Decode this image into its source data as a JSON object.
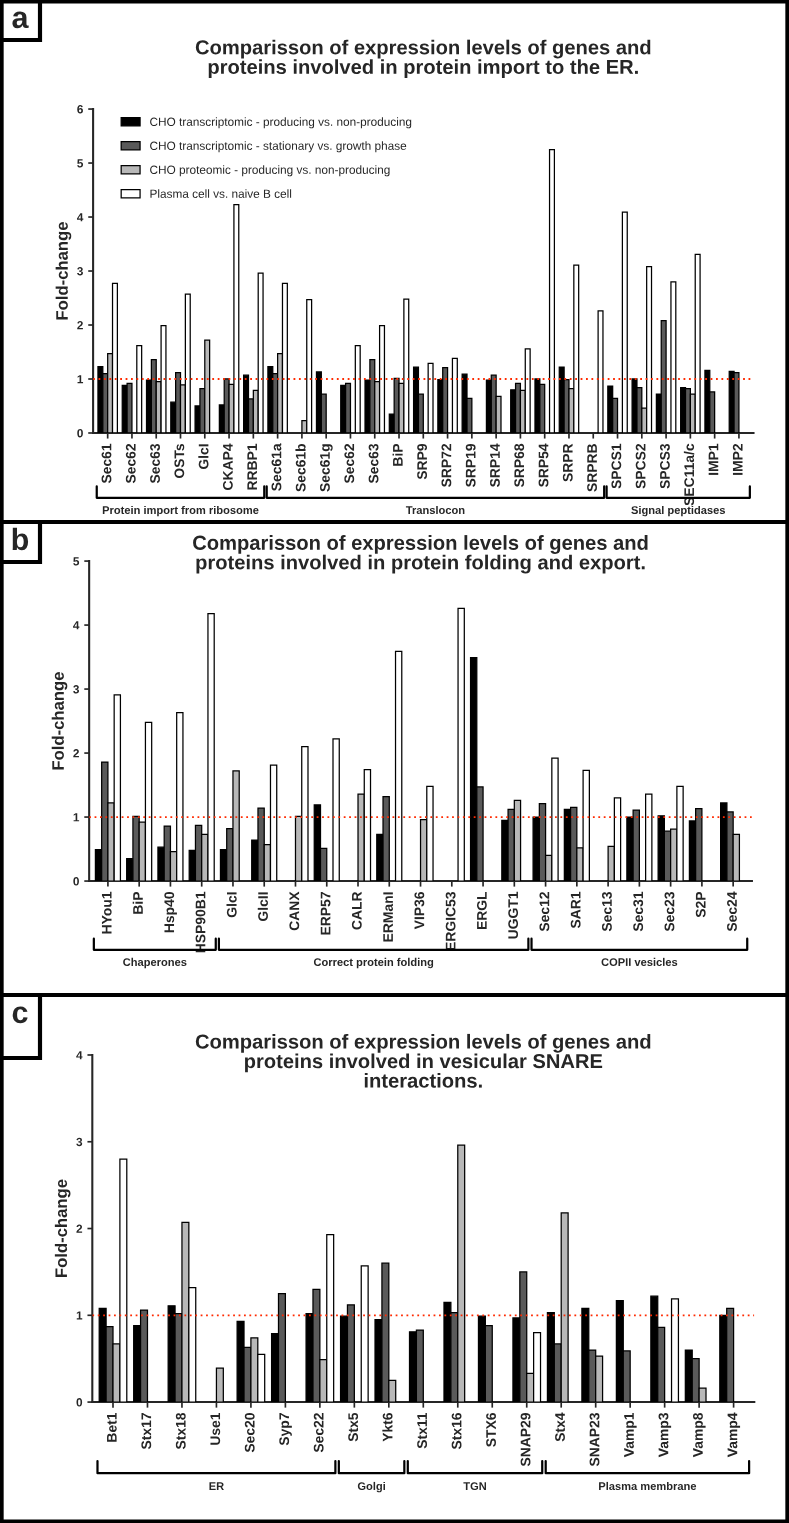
{
  "chart_data": [
    {
      "type": "bar",
      "title": "Comparisson of expression levels of genes and\nproteins involved in protein import to the ER.",
      "ylabel": "Fold-change",
      "annotations": [
        "a",
        "Protein import from ribosome",
        "Translocon",
        "Signal peptidases"
      ],
      "categories": [
        "Sec61",
        "Sec62",
        "Sec63",
        "OSTs",
        "GlcI",
        "CKAP4",
        "RRBP1",
        "Sec61a",
        "Sec61b",
        "Sec61g",
        "Sec62",
        "Sec63",
        "BiP",
        "SRP9",
        "SRP72",
        "SRP19",
        "SRP14",
        "SRP68",
        "SRP54",
        "SRPR",
        "SRPRB",
        "SPCS1",
        "SPCS2",
        "SPCS3",
        "SEC11a/c",
        "IMP1",
        "IMP2"
      ],
      "series": [
        {
          "name": "CHO transcriptomic - producing vs. non-producing",
          "color": "#000000",
          "values": [
            1.23,
            0.88,
            0.98,
            0.57,
            0.5,
            0.52,
            1.07,
            1.23,
            null,
            1.13,
            0.88,
            0.98,
            0.35,
            1.22,
            0.99,
            1.09,
            0.98,
            0.8,
            1.0,
            1.22,
            null,
            0.87,
            1.0,
            0.72,
            0.84,
            1.16,
            1.14
          ]
        },
        {
          "name": "CHO transcriptomic - stationary vs. growth phase",
          "color": "#5a5a5a",
          "values": [
            1.1,
            0.92,
            1.36,
            1.12,
            0.82,
            1.0,
            0.63,
            1.1,
            null,
            0.72,
            0.92,
            1.36,
            1.01,
            0.72,
            1.21,
            0.64,
            1.07,
            0.92,
            0.9,
            0.99,
            null,
            0.64,
            0.84,
            2.08,
            0.82,
            0.76,
            1.12
          ]
        },
        {
          "name": "CHO proteomic - producing vs. non-producing",
          "color": "#b8b8b8",
          "values": [
            1.47,
            null,
            0.95,
            0.89,
            1.72,
            0.9,
            0.79,
            1.47,
            0.23,
            null,
            null,
            0.95,
            0.92,
            null,
            null,
            null,
            0.68,
            0.79,
            null,
            0.82,
            null,
            null,
            0.46,
            null,
            0.72,
            null,
            null
          ]
        },
        {
          "name": "Plasma cell vs. naive B cell",
          "color": "#ffffff",
          "values": [
            2.77,
            1.62,
            1.99,
            2.57,
            null,
            4.23,
            2.96,
            2.77,
            2.47,
            null,
            1.62,
            1.99,
            2.48,
            1.29,
            1.38,
            null,
            null,
            1.56,
            5.25,
            3.11,
            2.26,
            4.09,
            3.08,
            2.8,
            3.31,
            null,
            null
          ]
        }
      ],
      "ylim": [
        0,
        6
      ],
      "yticks": [
        0,
        1,
        2,
        3,
        4,
        5,
        6
      ],
      "legend": "top left",
      "grid": false,
      "ref_lines": [
        {
          "axis": "y",
          "value": 1,
          "color": "#ff2a00",
          "line_style": "dotted"
        }
      ]
    },
    {
      "type": "bar",
      "title": "Comparisson of expression levels of genes and\nproteins involved in protein folding and export.",
      "ylabel": "Fold-change",
      "annotations": [
        "b",
        "Chaperones",
        "Correct protein folding",
        "COPII vesicles"
      ],
      "categories": [
        "HYou1",
        "BiP",
        "Hsp40",
        "HSP90B1",
        "GlcI",
        "GlcII",
        "CANX",
        "ERP57",
        "CALR",
        "ERManI",
        "VIP36",
        "ERGIC53",
        "ERGL",
        "UGGT1",
        "Sec12",
        "SAR1",
        "Sec13",
        "Sec31",
        "Sec23",
        "S2P",
        "Sec24"
      ],
      "series": [
        {
          "color": "#000000",
          "values": [
            0.49,
            0.35,
            0.53,
            0.48,
            0.49,
            0.64,
            null,
            1.19,
            null,
            0.73,
            null,
            null,
            3.49,
            0.95,
            1.0,
            1.12,
            null,
            1.0,
            1.02,
            0.94,
            1.22
          ]
        },
        {
          "color": "#5a5a5a",
          "values": [
            1.86,
            1.01,
            0.86,
            0.87,
            0.82,
            1.14,
            null,
            0.51,
            null,
            1.32,
            null,
            null,
            1.47,
            1.12,
            1.21,
            1.15,
            null,
            1.11,
            0.78,
            1.13,
            1.08
          ]
        },
        {
          "color": "#b8b8b8",
          "values": [
            1.22,
            0.92,
            0.46,
            0.73,
            1.72,
            0.57,
            1.01,
            null,
            1.36,
            null,
            0.96,
            null,
            null,
            1.26,
            0.4,
            0.52,
            0.54,
            null,
            0.81,
            null,
            0.73
          ]
        },
        {
          "color": "#ffffff",
          "values": [
            2.91,
            2.48,
            2.63,
            4.18,
            null,
            1.81,
            2.1,
            2.22,
            1.74,
            3.59,
            1.48,
            4.26,
            null,
            null,
            1.92,
            1.73,
            1.3,
            1.36,
            1.48,
            null,
            null
          ]
        }
      ],
      "ylim": [
        0,
        5
      ],
      "yticks": [
        0,
        1,
        2,
        3,
        4,
        5
      ],
      "grid": false,
      "ref_lines": [
        {
          "axis": "y",
          "value": 1,
          "color": "#ff2a00",
          "line_style": "dotted"
        }
      ]
    },
    {
      "type": "bar",
      "title": "Comparisson of expression levels of genes and\nproteins involved in vesicular SNARE\ninteractions.",
      "ylabel": "Fold-change",
      "annotations": [
        "c",
        "ER",
        "Golgi",
        "TGN",
        "Plasma membrane"
      ],
      "categories": [
        "Bet1",
        "Stx17",
        "Stx18",
        "Use1",
        "Sec20",
        "Syp7",
        "Sec22",
        "Stx5",
        "Ykt6",
        "Stx11",
        "Stx16",
        "STX6",
        "SNAP29",
        "Stx4",
        "SNAP23",
        "Vamp1",
        "Vamp3",
        "Vamp8",
        "Vamp4"
      ],
      "series": [
        {
          "color": "#000000",
          "values": [
            1.08,
            0.88,
            1.11,
            null,
            0.93,
            0.79,
            1.02,
            0.99,
            0.95,
            0.81,
            1.15,
            0.99,
            0.97,
            1.03,
            1.08,
            1.17,
            1.22,
            0.6,
            1.0
          ]
        },
        {
          "color": "#5a5a5a",
          "values": [
            0.87,
            1.06,
            1.02,
            null,
            0.63,
            1.25,
            1.3,
            1.12,
            1.6,
            0.83,
            1.03,
            0.88,
            1.5,
            0.67,
            0.6,
            0.59,
            0.86,
            0.5,
            1.08
          ]
        },
        {
          "color": "#b8b8b8",
          "values": [
            0.67,
            null,
            2.07,
            0.39,
            0.74,
            null,
            0.49,
            null,
            0.25,
            null,
            2.96,
            null,
            0.33,
            2.18,
            0.53,
            null,
            null,
            0.16,
            null
          ]
        },
        {
          "color": "#ffffff",
          "values": [
            2.8,
            null,
            1.32,
            null,
            0.55,
            null,
            1.93,
            1.57,
            null,
            null,
            null,
            null,
            0.8,
            null,
            null,
            null,
            1.19,
            null,
            null
          ]
        }
      ],
      "ylim": [
        0,
        4
      ],
      "yticks": [
        0,
        1,
        2,
        3,
        4
      ],
      "grid": false,
      "ref_lines": [
        {
          "axis": "y",
          "value": 1,
          "color": "#ff2a00",
          "line_style": "dotted"
        }
      ]
    }
  ]
}
